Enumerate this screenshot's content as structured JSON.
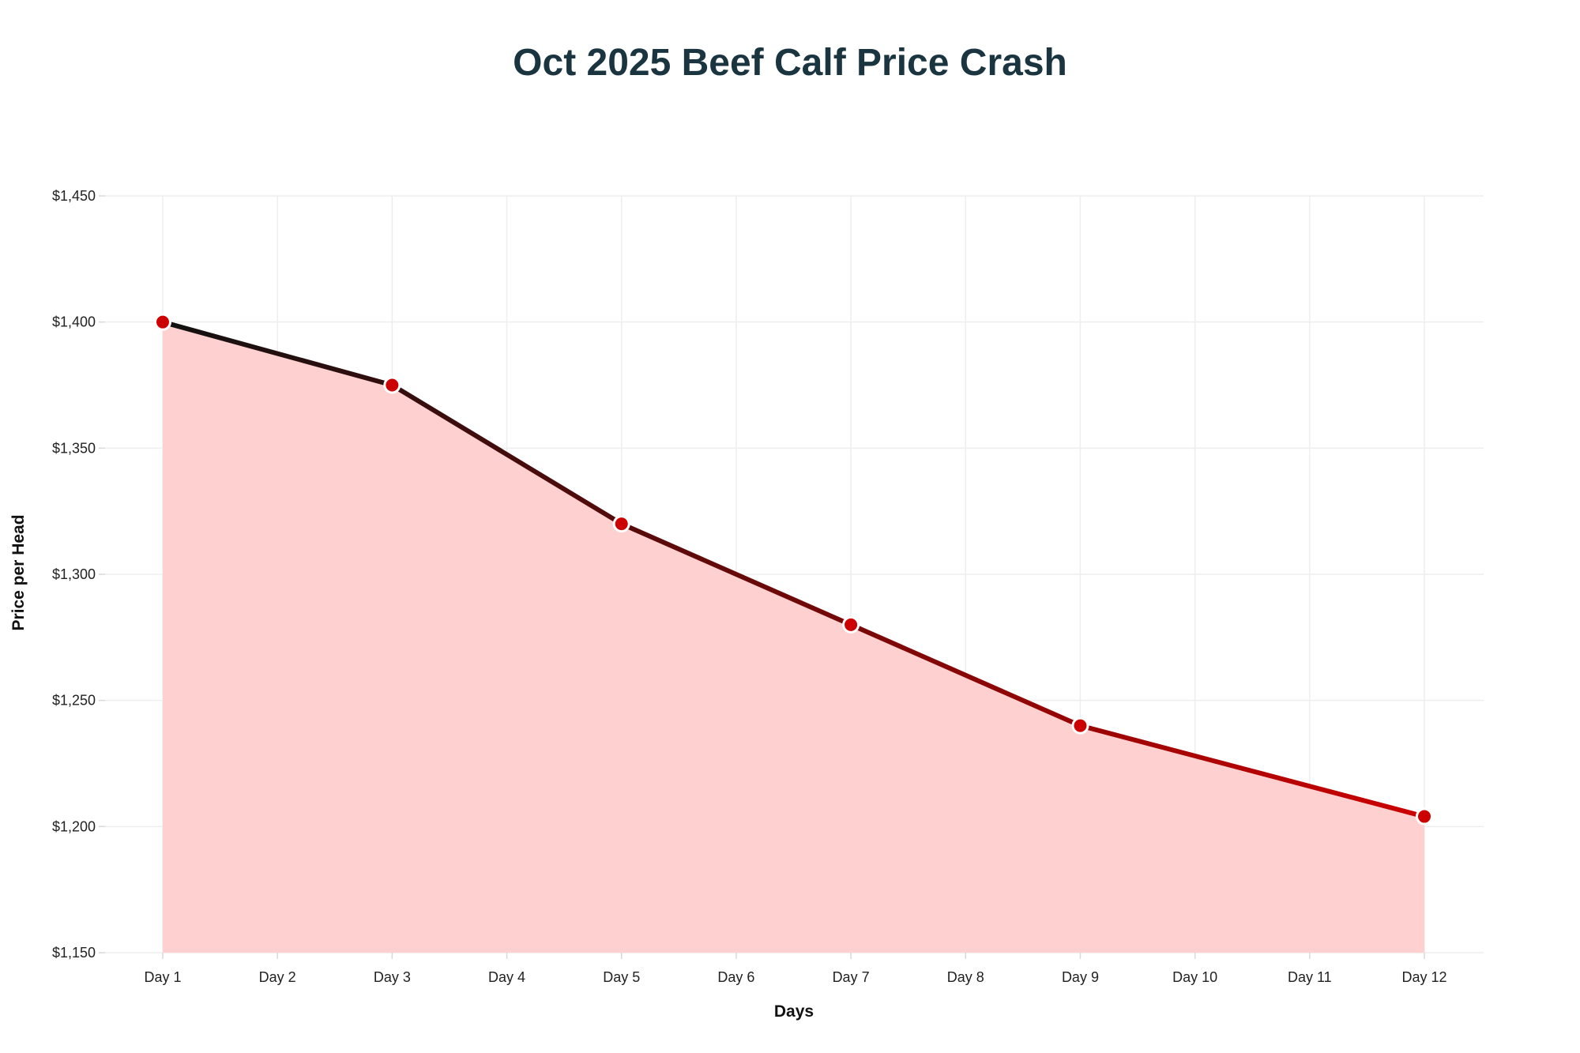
{
  "chart_data": {
    "type": "area",
    "title": "Oct 2025 Beef Calf Price Crash",
    "xlabel": "Days",
    "ylabel": "Price per Head",
    "categories": [
      "Day 1",
      "Day 2",
      "Day 3",
      "Day 4",
      "Day 5",
      "Day 6",
      "Day 7",
      "Day 8",
      "Day 9",
      "Day 10",
      "Day 11",
      "Day 12"
    ],
    "series": [
      {
        "x": [
          "Day 1",
          "Day 3",
          "Day 5",
          "Day 7",
          "Day 9",
          "Day 12"
        ],
        "values": [
          1400,
          1375,
          1320,
          1280,
          1240,
          1204
        ]
      }
    ],
    "ylim": [
      1150,
      1450
    ],
    "yticks": [
      1150,
      1200,
      1250,
      1300,
      1350,
      1400,
      1450
    ],
    "ytick_labels": [
      "$1,150",
      "$1,200",
      "$1,250",
      "$1,300",
      "$1,350",
      "$1,400",
      "$1,450"
    ],
    "grid": true,
    "legend": "none",
    "colors": {
      "line_start": "#111111",
      "line_end": "#cc0000",
      "fill": "#ffd0d0",
      "marker": "#cc0000",
      "marker_outline": "#ffffff",
      "grid": "#eeeeee",
      "title": "#1a3540"
    }
  }
}
